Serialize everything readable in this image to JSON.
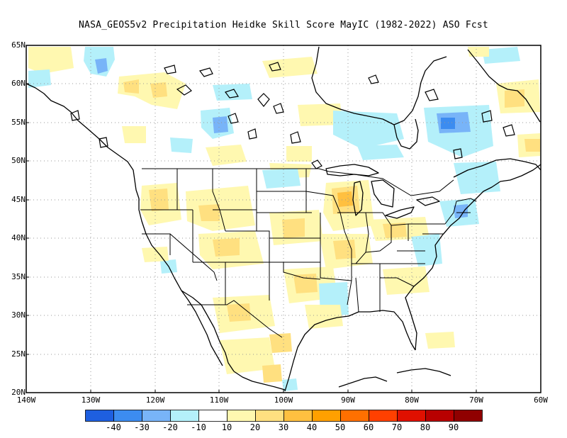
{
  "title": "NASA_GEOS5v2  Precipitation Heidke Skill Score MayIC (1982-2022) ASO Fcst",
  "lat_ticks": [
    "65N",
    "60N",
    "55N",
    "50N",
    "45N",
    "40N",
    "35N",
    "30N",
    "25N",
    "20N"
  ],
  "lon_ticks": [
    "140W",
    "130W",
    "120W",
    "110W",
    "100W",
    "90W",
    "80W",
    "70W",
    "60W"
  ],
  "legend": {
    "colors": [
      "#1e5fe0",
      "#3c8cf0",
      "#78b4f8",
      "#b4f0fa",
      "#ffffff",
      "#fff8b0",
      "#ffe080",
      "#ffc040",
      "#ffa000",
      "#ff7000",
      "#ff4000",
      "#e01000",
      "#b80000",
      "#900000"
    ],
    "labels": [
      "-40",
      "-30",
      "-20",
      "-10",
      "10",
      "20",
      "30",
      "40",
      "50",
      "60",
      "70",
      "80",
      "90"
    ]
  },
  "map_extent": {
    "lon_min": -140,
    "lon_max": -60,
    "lat_min": 20,
    "lat_max": 65
  }
}
